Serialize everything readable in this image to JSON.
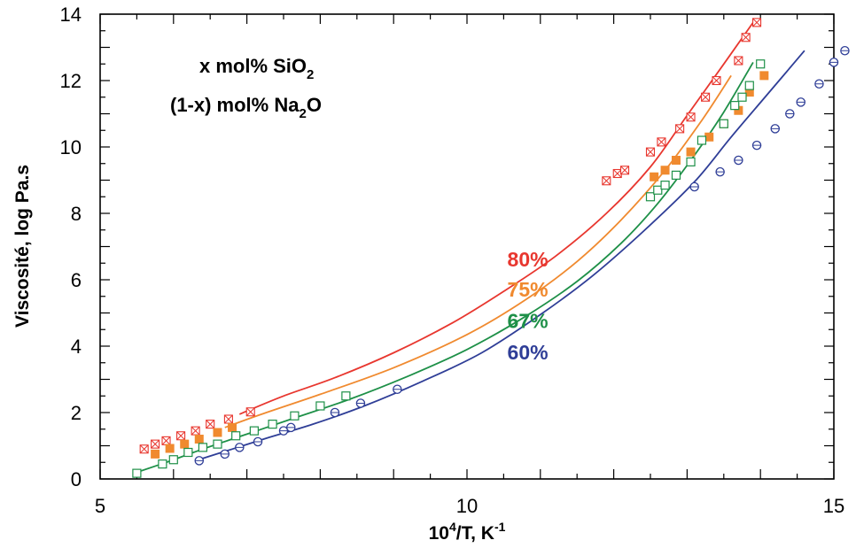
{
  "chart_data": {
    "type": "scatter",
    "annotation": {
      "line1": "x mol% SiO",
      "line1_sub": "2",
      "line2": "(1-x) mol% Na",
      "line2_sub": "2",
      "line2_end": "O"
    },
    "xlabel": {
      "main": "10",
      "sup1": "4",
      "mid": "/T, K",
      "sup2": "-1"
    },
    "ylabel": "Viscosité, log Pa.s",
    "xlim": [
      5,
      15
    ],
    "ylim": [
      0,
      14
    ],
    "x_ticks": [
      5,
      10,
      15
    ],
    "y_ticks": [
      0,
      2,
      4,
      6,
      8,
      10,
      12,
      14
    ],
    "grid": false,
    "series": [
      {
        "name": "80%",
        "color": "#e8372f",
        "marker": "crossed-square",
        "label_pos": [
          10.55,
          6.4
        ],
        "curve": [
          [
            6.9,
            1.95
          ],
          [
            7.5,
            2.5
          ],
          [
            8.2,
            3.05
          ],
          [
            9.0,
            3.8
          ],
          [
            9.8,
            4.7
          ],
          [
            10.5,
            5.65
          ],
          [
            11.2,
            6.7
          ],
          [
            11.9,
            8.0
          ],
          [
            12.5,
            9.4
          ],
          [
            13.0,
            10.95
          ],
          [
            13.5,
            12.5
          ],
          [
            13.9,
            13.75
          ]
        ],
        "points": [
          [
            5.6,
            0.9
          ],
          [
            5.75,
            1.05
          ],
          [
            5.9,
            1.15
          ],
          [
            6.1,
            1.3
          ],
          [
            6.3,
            1.45
          ],
          [
            6.5,
            1.65
          ],
          [
            6.75,
            1.8
          ],
          [
            7.05,
            2.02
          ],
          [
            11.9,
            8.98
          ],
          [
            12.05,
            9.2
          ],
          [
            12.15,
            9.3
          ],
          [
            12.5,
            9.85
          ],
          [
            12.65,
            10.15
          ],
          [
            12.9,
            10.55
          ],
          [
            13.05,
            10.9
          ],
          [
            13.25,
            11.5
          ],
          [
            13.4,
            12.0
          ],
          [
            13.7,
            12.6
          ],
          [
            13.8,
            13.3
          ],
          [
            13.95,
            13.75
          ]
        ]
      },
      {
        "name": "75%",
        "color": "#f08a2f",
        "marker": "filled-square",
        "label_pos": [
          10.55,
          5.5
        ],
        "curve": [
          [
            6.7,
            1.55
          ],
          [
            7.2,
            1.95
          ],
          [
            8.0,
            2.55
          ],
          [
            9.0,
            3.35
          ],
          [
            10.0,
            4.35
          ],
          [
            10.8,
            5.4
          ],
          [
            11.5,
            6.55
          ],
          [
            12.1,
            7.8
          ],
          [
            12.7,
            9.3
          ],
          [
            13.2,
            10.8
          ],
          [
            13.6,
            12.15
          ]
        ],
        "points": [
          [
            5.75,
            0.75
          ],
          [
            5.95,
            0.92
          ],
          [
            6.15,
            1.05
          ],
          [
            6.35,
            1.2
          ],
          [
            6.6,
            1.4
          ],
          [
            6.8,
            1.55
          ],
          [
            12.55,
            9.1
          ],
          [
            12.7,
            9.3
          ],
          [
            12.85,
            9.6
          ],
          [
            13.05,
            9.85
          ],
          [
            13.3,
            10.3
          ],
          [
            13.5,
            10.7
          ],
          [
            13.7,
            11.1
          ],
          [
            13.85,
            11.65
          ],
          [
            14.05,
            12.15
          ]
        ]
      },
      {
        "name": "67%",
        "color": "#1e9048",
        "marker": "open-square",
        "label_pos": [
          10.55,
          4.55
        ],
        "curve": [
          [
            5.5,
            0.2
          ],
          [
            5.9,
            0.5
          ],
          [
            6.4,
            0.9
          ],
          [
            7.0,
            1.35
          ],
          [
            7.6,
            1.8
          ],
          [
            8.4,
            2.4
          ],
          [
            9.2,
            3.1
          ],
          [
            10.0,
            3.9
          ],
          [
            10.8,
            4.9
          ],
          [
            11.5,
            5.95
          ],
          [
            12.1,
            7.1
          ],
          [
            12.6,
            8.3
          ],
          [
            13.1,
            9.75
          ],
          [
            13.5,
            11.05
          ],
          [
            13.9,
            12.55
          ]
        ],
        "points": [
          [
            5.5,
            0.17
          ],
          [
            5.85,
            0.45
          ],
          [
            6.0,
            0.58
          ],
          [
            6.2,
            0.8
          ],
          [
            6.4,
            0.95
          ],
          [
            6.6,
            1.05
          ],
          [
            6.85,
            1.3
          ],
          [
            7.1,
            1.45
          ],
          [
            7.35,
            1.65
          ],
          [
            7.65,
            1.9
          ],
          [
            8.0,
            2.2
          ],
          [
            8.35,
            2.5
          ],
          [
            12.5,
            8.5
          ],
          [
            12.6,
            8.7
          ],
          [
            12.7,
            8.85
          ],
          [
            12.85,
            9.15
          ],
          [
            13.05,
            9.55
          ],
          [
            13.2,
            10.2
          ],
          [
            13.5,
            10.7
          ],
          [
            13.65,
            11.25
          ],
          [
            13.75,
            11.5
          ],
          [
            13.85,
            11.85
          ],
          [
            14.0,
            12.5
          ]
        ]
      },
      {
        "name": "60%",
        "color": "#2f3e97",
        "marker": "open-circle",
        "label_pos": [
          10.55,
          3.6
        ],
        "curve": [
          [
            6.3,
            0.55
          ],
          [
            6.8,
            0.9
          ],
          [
            7.3,
            1.25
          ],
          [
            7.9,
            1.65
          ],
          [
            8.6,
            2.2
          ],
          [
            9.4,
            2.95
          ],
          [
            10.2,
            3.8
          ],
          [
            11.0,
            4.95
          ],
          [
            11.7,
            6.1
          ],
          [
            12.4,
            7.45
          ],
          [
            13.1,
            8.95
          ],
          [
            13.6,
            10.3
          ],
          [
            14.1,
            11.6
          ],
          [
            14.6,
            12.9
          ]
        ],
        "points": [
          [
            6.35,
            0.55
          ],
          [
            6.7,
            0.75
          ],
          [
            6.9,
            0.95
          ],
          [
            7.15,
            1.12
          ],
          [
            7.5,
            1.45
          ],
          [
            7.6,
            1.55
          ],
          [
            8.2,
            2.0
          ],
          [
            8.55,
            2.28
          ],
          [
            9.05,
            2.7
          ],
          [
            13.1,
            8.8
          ],
          [
            13.45,
            9.25
          ],
          [
            13.7,
            9.6
          ],
          [
            13.95,
            10.05
          ],
          [
            14.2,
            10.55
          ],
          [
            14.4,
            11.0
          ],
          [
            14.55,
            11.35
          ],
          [
            14.8,
            11.9
          ],
          [
            15.0,
            12.55
          ],
          [
            15.15,
            12.9
          ]
        ]
      }
    ]
  }
}
